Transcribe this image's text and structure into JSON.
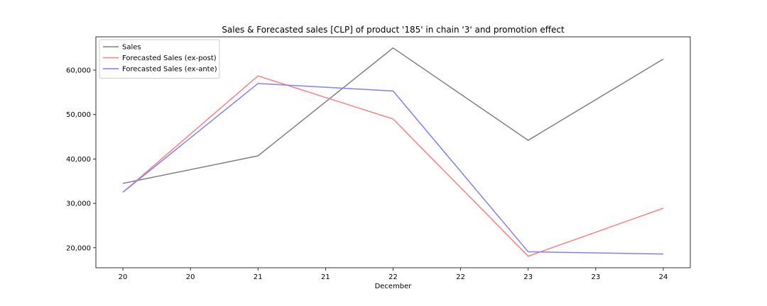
{
  "chart_data": {
    "type": "line",
    "title": "Sales & Forecasted sales [CLP] of product '185' in chain '3' and promotion effect",
    "xlabel": "December",
    "ylabel": "",
    "x": [
      20,
      21,
      22,
      23,
      24
    ],
    "x_range": [
      19.8,
      24.2
    ],
    "x_ticks": [
      20,
      20.5,
      21,
      21.5,
      22,
      22.5,
      23,
      23.5,
      24
    ],
    "x_tick_labels": [
      "20",
      "20",
      "21",
      "21",
      "22",
      "22",
      "23",
      "23",
      "24"
    ],
    "ylim": [
      15500,
      67500
    ],
    "y_ticks": [
      20000,
      30000,
      40000,
      50000,
      60000
    ],
    "y_tick_labels": [
      "20,000",
      "30,000",
      "40,000",
      "50,000",
      "60,000"
    ],
    "grid": false,
    "legend_position": "top-left",
    "series": [
      {
        "name": "Sales",
        "color": "#808080",
        "values": [
          34500,
          40700,
          65000,
          44200,
          62500
        ]
      },
      {
        "name": "Forecasted Sales (ex-post)",
        "color": "#ff7f7f",
        "values": [
          32500,
          58700,
          49000,
          18100,
          28900
        ]
      },
      {
        "name": "Forecasted Sales (ex-ante)",
        "color": "#7f7fff",
        "values": [
          32500,
          57000,
          55300,
          19100,
          18600
        ]
      }
    ]
  }
}
